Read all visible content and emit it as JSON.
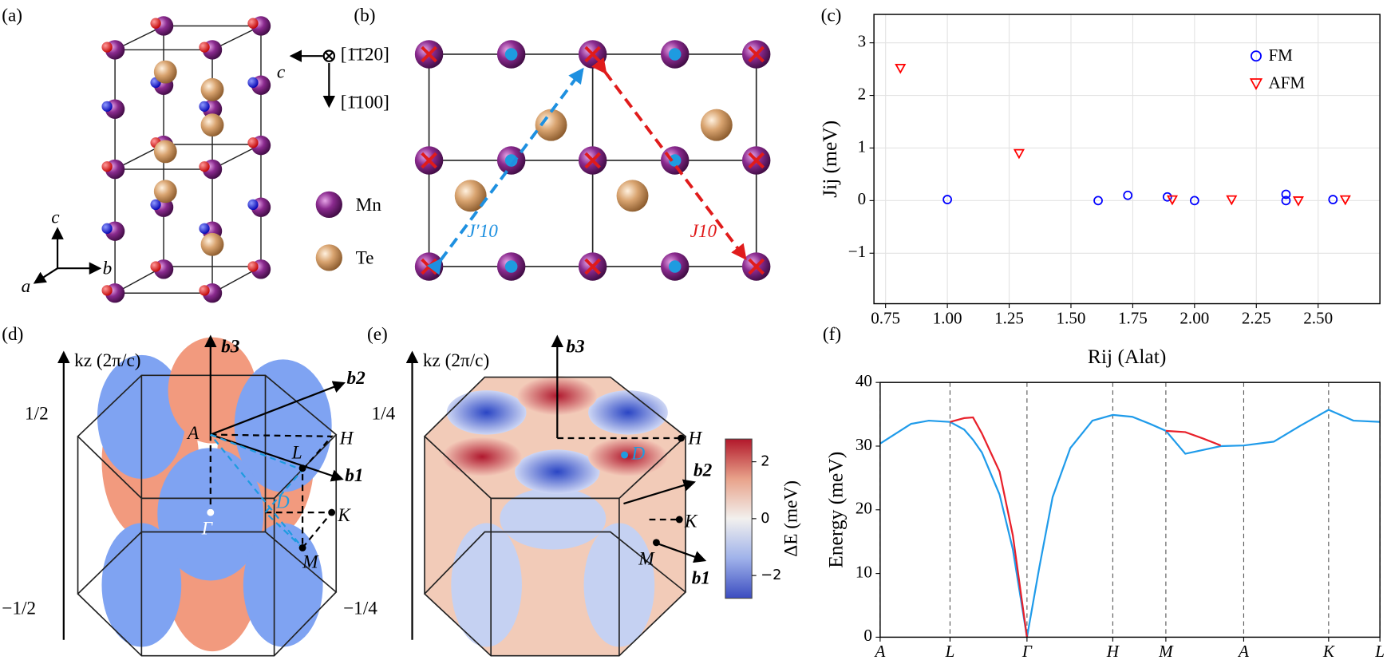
{
  "panel_labels": [
    "(a)",
    "(b)",
    "(c)",
    "(d)",
    "(e)",
    "(f)"
  ],
  "panel_a": {
    "directions": [
      "[1̄1̄20]",
      "[1̄100]"
    ],
    "view_axis": "c",
    "axes": [
      "c",
      "b",
      "a"
    ],
    "legend": [
      "Mn",
      "Te"
    ]
  },
  "panel_b": {
    "labels": [
      "J′10",
      "J10"
    ]
  },
  "panel_d": {
    "axis_label": "kz (2π/c)",
    "ticks": [
      "1/2",
      "−1/2"
    ],
    "vectors": [
      "b3",
      "b2",
      "b1"
    ],
    "points": [
      "A",
      "H",
      "L",
      "D",
      "K",
      "M",
      "Γ"
    ]
  },
  "panel_e": {
    "axis_label": "kz (2π/c)",
    "ticks": [
      "1/4",
      "−1/4"
    ],
    "vectors": [
      "b3",
      "b2",
      "b1"
    ],
    "points": [
      "H",
      "D",
      "K",
      "M"
    ],
    "colorbar": {
      "label": "ΔE (meV)",
      "lim": [
        -2.8,
        2.8
      ],
      "ticks": [
        2,
        0,
        {
          "value": -2,
          "label": "−2"
        }
      ]
    }
  },
  "chart_data": [
    {
      "type": "scatter",
      "xlabel": "Rij (Alat)",
      "ylabel": "Jij (meV)",
      "xlim": [
        0.703,
        2.75
      ],
      "ylim": [
        -1.96,
        3.54
      ],
      "xticks": [
        0.75,
        {
          "value": 1.0,
          "label": "1.00"
        },
        1.25,
        {
          "value": 1.5,
          "label": "1.50"
        },
        1.75,
        {
          "value": 2.0,
          "label": "2.00"
        },
        2.25,
        {
          "value": 2.5,
          "label": "2.50"
        }
      ],
      "yticks": [
        {
          "value": -1,
          "label": "−1"
        },
        0,
        1,
        2,
        3
      ],
      "grid": true,
      "legend": "upper right",
      "series": [
        {
          "name": "FM",
          "color": "#0000ff",
          "marker": "circle",
          "x": [
            1.0,
            1.61,
            1.73,
            1.89,
            2.0,
            2.37,
            2.37,
            2.56
          ],
          "values": [
            0.02,
            0.0,
            0.1,
            0.07,
            0.0,
            0.12,
            0.0,
            0.02
          ]
        },
        {
          "name": "AFM",
          "color": "#ff0000",
          "marker": "triangle",
          "x": [
            0.81,
            1.29,
            1.91,
            2.15,
            2.42,
            2.61
          ],
          "values": [
            2.52,
            0.9,
            0.02,
            0.02,
            0.0,
            0.02
          ]
        }
      ]
    },
    {
      "type": "line",
      "ylabel": "Energy (meV)",
      "xlim": [
        0,
        565
      ],
      "ylim": [
        0,
        40
      ],
      "xticks": [
        {
          "value": 0,
          "label": "A"
        },
        {
          "value": 79,
          "label": "L"
        },
        {
          "value": 166,
          "label": "Γ"
        },
        {
          "value": 263,
          "label": "H"
        },
        {
          "value": 323,
          "label": "M"
        },
        {
          "value": 411,
          "label": "A"
        },
        {
          "value": 507,
          "label": "K"
        },
        {
          "value": 565,
          "label": "L"
        }
      ],
      "yticks": [
        0,
        10,
        20,
        30,
        40
      ],
      "grid": "x",
      "x": [
        0,
        35,
        55,
        79,
        95,
        105,
        115,
        135,
        150,
        166,
        180,
        195,
        215,
        240,
        263,
        285,
        305,
        323,
        345,
        365,
        385,
        411,
        445,
        475,
        507,
        535,
        565
      ],
      "series": [
        {
          "color": "#1f9bea",
          "values": [
            30.4,
            33.5,
            34,
            33.8,
            32.6,
            31,
            29,
            22.4,
            13.8,
            0,
            11,
            22,
            29.7,
            34,
            34.9,
            34.6,
            33.5,
            32.4,
            28.8,
            29.4,
            30,
            30.1,
            30.7,
            33.2,
            35.7,
            34,
            33.8
          ]
        },
        {
          "color": "#e8202a",
          "values": [
            null,
            null,
            null,
            33.8,
            34.4,
            34.5,
            32,
            26,
            16,
            0,
            null,
            null,
            null,
            null,
            null,
            null,
            null,
            32.4,
            32.2,
            31.2,
            30.1,
            null,
            null,
            null,
            null,
            null,
            null
          ]
        }
      ]
    }
  ]
}
